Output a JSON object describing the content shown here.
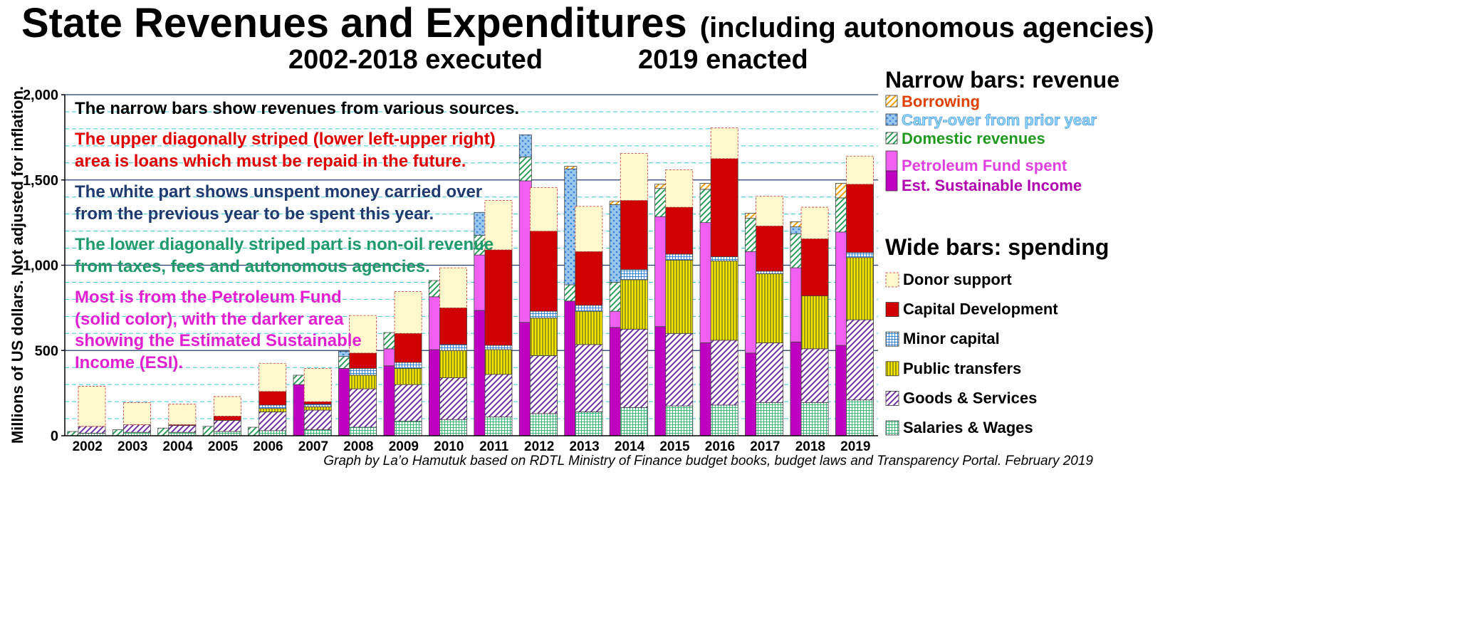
{
  "chart_data": {
    "type": "bar",
    "title": "State Revenues and Expenditures",
    "title_suffix": "(including autonomous agencies)",
    "subtitle_left": "2002-2018 executed",
    "subtitle_right": "2019 enacted",
    "ylabel": "Millions of US dollars.   Not adjusted for inflation.",
    "ylim": [
      0,
      2000
    ],
    "y_ticks": [
      0,
      500,
      1000,
      1500,
      2000
    ],
    "y_tick_labels": [
      "0",
      "500",
      "1,000",
      "1,500",
      "2,000"
    ],
    "grid": true,
    "categories": [
      "2002",
      "2003",
      "2004",
      "2005",
      "2006",
      "2007",
      "2008",
      "2009",
      "2010",
      "2011",
      "2012",
      "2013",
      "2014",
      "2015",
      "2016",
      "2017",
      "2018",
      "2019"
    ],
    "revenue_legend_title": "Narrow bars: revenue",
    "spending_legend_title": "Wide bars: spending",
    "revenue_series": [
      {
        "name": "Est. Sustainable Income",
        "color": "#c000c0",
        "pattern": "solid",
        "values": [
          0,
          0,
          0,
          0,
          0,
          300,
          395,
          410,
          505,
          735,
          665,
          790,
          635,
          640,
          545,
          485,
          550,
          530
        ]
      },
      {
        "name": "Petroleum Fund spent",
        "color": "#f060f0",
        "pattern": "solid",
        "values": [
          0,
          0,
          0,
          0,
          0,
          0,
          0,
          100,
          310,
          325,
          830,
          0,
          95,
          645,
          705,
          595,
          435,
          665
        ]
      },
      {
        "name": "Domestic revenues",
        "color": "#2aa05a",
        "pattern": "stripe-diag",
        "values": [
          25,
          35,
          45,
          55,
          50,
          55,
          70,
          95,
          95,
          115,
          140,
          95,
          170,
          165,
          195,
          195,
          200,
          200
        ]
      },
      {
        "name": "Carry-over from prior year",
        "color": "#3a86d8",
        "pattern": "dots",
        "values": [
          0,
          0,
          0,
          0,
          0,
          0,
          30,
          0,
          0,
          135,
          130,
          680,
          455,
          0,
          0,
          0,
          40,
          0
        ]
      },
      {
        "name": "Borrowing",
        "color": "#f5a000",
        "pattern": "stripe-diag",
        "values": [
          0,
          0,
          0,
          0,
          0,
          0,
          0,
          0,
          0,
          0,
          0,
          15,
          20,
          25,
          35,
          30,
          30,
          85
        ]
      }
    ],
    "spending_series": [
      {
        "name": "Salaries & Wages",
        "color": "#3ab878",
        "pattern": "grid",
        "values": [
          15,
          20,
          20,
          25,
          30,
          35,
          50,
          85,
          95,
          110,
          130,
          140,
          165,
          175,
          180,
          195,
          195,
          210
        ]
      },
      {
        "name": "Goods & Services",
        "color": "#7030a0",
        "pattern": "stripe-diag",
        "values": [
          40,
          45,
          40,
          65,
          110,
          115,
          225,
          215,
          245,
          250,
          340,
          395,
          460,
          425,
          380,
          350,
          315,
          470
        ]
      },
      {
        "name": "Public transfers",
        "color": "#f2e600",
        "pattern": "vlines",
        "values": [
          0,
          0,
          0,
          0,
          20,
          20,
          80,
          95,
          160,
          145,
          220,
          195,
          290,
          430,
          465,
          405,
          310,
          365
        ]
      },
      {
        "name": "Minor capital",
        "color": "#3a86d8",
        "pattern": "grid",
        "values": [
          0,
          0,
          0,
          0,
          20,
          15,
          40,
          35,
          35,
          25,
          40,
          35,
          60,
          35,
          25,
          15,
          0,
          30
        ]
      },
      {
        "name": "Capital Development",
        "color": "#d00000",
        "pattern": "solid",
        "values": [
          0,
          0,
          5,
          25,
          80,
          15,
          90,
          170,
          215,
          560,
          470,
          315,
          405,
          275,
          575,
          265,
          335,
          400
        ]
      },
      {
        "name": "Donor support",
        "color": "#fff8cc",
        "pattern": "solid",
        "values": [
          235,
          130,
          120,
          115,
          165,
          195,
          220,
          245,
          235,
          290,
          255,
          265,
          275,
          220,
          180,
          175,
          185,
          165
        ]
      }
    ],
    "annotations": [
      {
        "text": "The narrow bars show revenues from various sources.",
        "color": "#000000"
      },
      {
        "text": "The upper diagonally striped (lower left-upper right)",
        "color": "#e00000"
      },
      {
        "text": "area is loans which must be repaid in the future.",
        "color": "#e00000"
      },
      {
        "text": "The white part shows unspent money carried over",
        "color": "#1f3a6e"
      },
      {
        "text": "from the previous year to be spent this year.",
        "color": "#1f3a6e"
      },
      {
        "text": "The lower diagonally striped part is non-oil revenue",
        "color": "#1f9a6a"
      },
      {
        "text": "from taxes, fees and autonomous agencies.",
        "color": "#1f9a6a"
      },
      {
        "text": "Most is from the Petroleum Fund",
        "color": "#e020d0"
      },
      {
        "text": "(solid color), with the darker area",
        "color": "#e020d0"
      },
      {
        "text": "showing the Estimated Sustainable",
        "color": "#e020d0"
      },
      {
        "text": "Income (ESI).",
        "color": "#e020d0"
      }
    ],
    "credit": "Graph by La’o Hamutuk based on RDTL Ministry of Finance budget books, budget laws and Transparency Portal.  February 2019"
  }
}
